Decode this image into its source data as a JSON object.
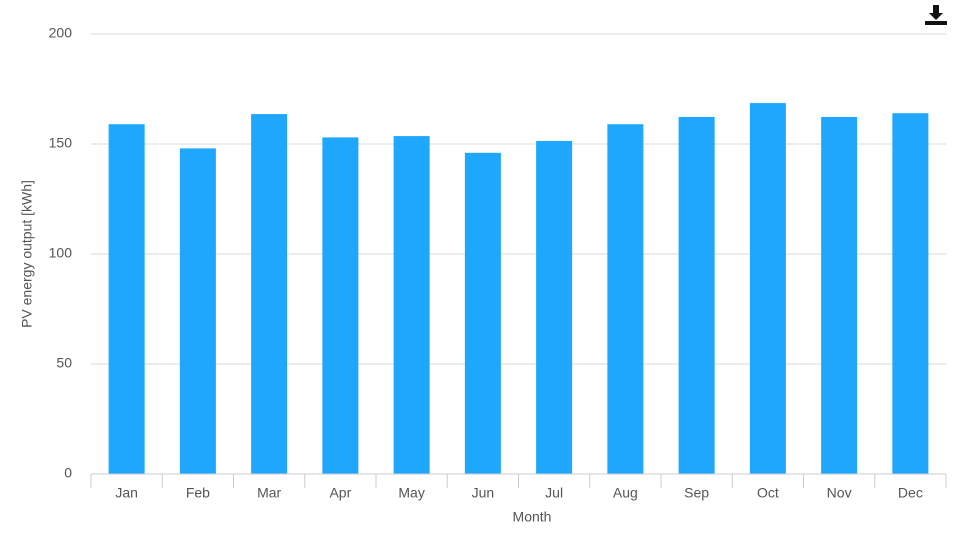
{
  "chart_data": {
    "type": "bar",
    "x_label": "Month",
    "y_label": "PV energy output [kWh]",
    "categories": [
      "Jan",
      "Feb",
      "Mar",
      "Apr",
      "May",
      "Jun",
      "Jul",
      "Aug",
      "Sep",
      "Oct",
      "Nov",
      "Dec"
    ],
    "values": [
      159,
      148,
      163.6,
      153,
      153.6,
      146,
      151.4,
      159,
      162.3,
      168.6,
      162.3,
      164
    ],
    "color": "#1fa6fd",
    "ylim": [
      0,
      200
    ],
    "yticks": [
      0,
      50,
      100,
      150,
      200
    ],
    "grid": true
  }
}
